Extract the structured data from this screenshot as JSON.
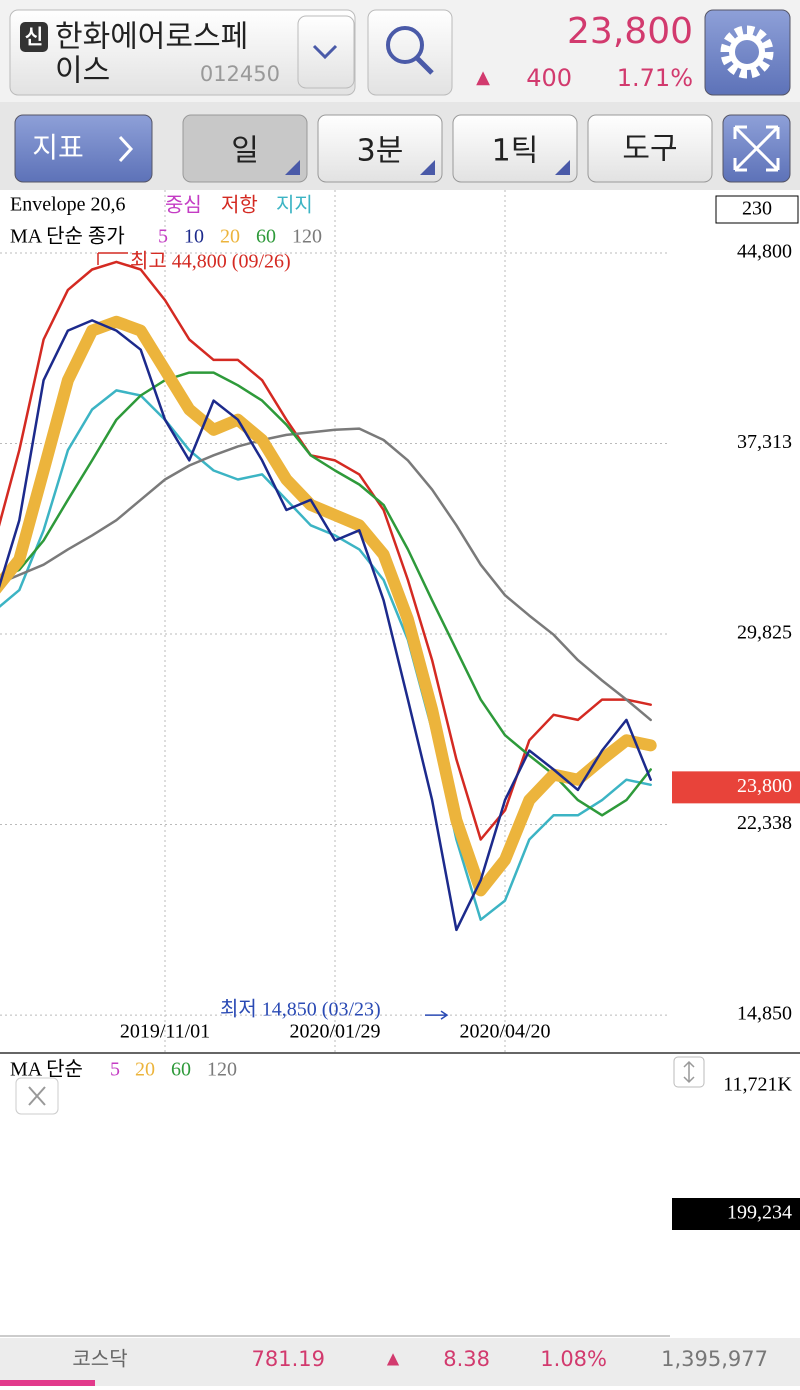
{
  "header": {
    "badge": "신",
    "name_line1": "한화에어로스페",
    "name_line2": "이스",
    "code": "012450",
    "price": "23,800",
    "change_arrow": "▲",
    "change": "400",
    "change_pct": "1.71%"
  },
  "toolbar": {
    "indicator": "지표",
    "period": "일",
    "minute": "3분",
    "tick": "1틱",
    "tools": "도구"
  },
  "chart_data": {
    "type": "line",
    "envelope_title": "Envelope 20,6",
    "envelope_center": {
      "name": "중심",
      "color": "#c43cc4"
    },
    "ma_title": "MA 단순 종가",
    "ma5": {
      "name": "5",
      "color": "#c43cc4"
    },
    "period_box": "230",
    "categories": [
      null,
      null,
      null,
      null,
      null,
      null,
      null,
      "2019/11/01",
      null,
      null,
      null,
      null,
      null,
      null,
      "2020/01/29",
      null,
      null,
      null,
      null,
      null,
      null,
      "2020/04/20",
      null,
      null,
      null,
      null,
      null,
      null
    ],
    "series": [
      {
        "name": "저항",
        "color": "#d42a22",
        "values": [
          33500,
          37050,
          41400,
          43350,
          44150,
          44450,
          44150,
          42950,
          41400,
          40600,
          40600,
          39800,
          38250,
          36850,
          36650,
          36100,
          34700,
          31950,
          28800,
          24900,
          21750,
          22900,
          25650,
          26650,
          26450,
          27250,
          27250,
          27050
        ]
      },
      {
        "name": "지지",
        "color": "#3cb4c4",
        "values": [
          30750,
          31550,
          33900,
          37050,
          38650,
          39400,
          39200,
          38250,
          37050,
          36250,
          35900,
          36100,
          35100,
          34100,
          33700,
          33150,
          31950,
          29600,
          26050,
          21750,
          18600,
          19350,
          21750,
          22700,
          22700,
          23300,
          24100,
          23900
        ]
      },
      {
        "name": "120",
        "color": "#7a7a7a",
        "values": [
          31750,
          32150,
          32550,
          33150,
          33700,
          34300,
          35100,
          35900,
          36450,
          36850,
          37200,
          37450,
          37650,
          37750,
          37850,
          37900,
          37450,
          36650,
          35500,
          34100,
          32550,
          31350,
          30550,
          29800,
          28800,
          28000,
          27250,
          26450
        ]
      },
      {
        "name": "60",
        "color": "#2e9a3a",
        "values": [
          31950,
          32350,
          33500,
          35100,
          36650,
          38250,
          39200,
          39800,
          40100,
          40100,
          39600,
          39000,
          38050,
          36850,
          36250,
          35700,
          34900,
          33150,
          31150,
          29200,
          27250,
          25850,
          25050,
          24300,
          23300,
          22700,
          23300,
          24500
        ]
      },
      {
        "name": "20",
        "color": "#ecb43c",
        "values": [
          31550,
          32750,
          36250,
          39800,
          41750,
          42100,
          41750,
          40200,
          38650,
          37850,
          38250,
          37450,
          35900,
          34900,
          34500,
          34100,
          32950,
          30400,
          26850,
          22500,
          19750,
          20950,
          23300,
          24300,
          24100,
          24900,
          25650,
          25450
        ]
      },
      {
        "name": "10",
        "color": "#1c2a8c",
        "values": [
          31150,
          34300,
          39800,
          41750,
          42150,
          41750,
          41000,
          38250,
          36650,
          39000,
          38250,
          36650,
          34700,
          35100,
          33500,
          33900,
          31150,
          27250,
          23300,
          18200,
          20150,
          23300,
          25250,
          24500,
          23700,
          25250,
          26450,
          24100
        ]
      }
    ],
    "ylim": [
      13400,
      47275
    ],
    "yticks": [
      {
        "value": 44800,
        "label": "44,800"
      },
      {
        "value": 37313,
        "label": "37,313"
      },
      {
        "value": 29825,
        "label": "29,825"
      },
      {
        "value": 22338,
        "label": "22,338"
      },
      {
        "value": 14850,
        "label": "14,850"
      }
    ],
    "current_price": {
      "value": 23800,
      "label": "23,800"
    },
    "high": {
      "value": 44800,
      "label": "최고 44,800 (09/26)"
    },
    "low": {
      "value": 14850,
      "label": "최저 14,850 (03/23)"
    },
    "grid": true
  },
  "volume": {
    "title": "MA 단순",
    "ma": [
      {
        "name": "5",
        "color": "#c43cc4"
      },
      {
        "name": "20",
        "color": "#ecb43c"
      },
      {
        "name": "60",
        "color": "#2e9a3a"
      },
      {
        "name": "120",
        "color": "#7a7a7a"
      }
    ],
    "top_label": "11,721K",
    "marker_label": "199,234"
  },
  "footer": {
    "index": "코스닥",
    "value": "781.19",
    "arrow": "▲",
    "change": "8.38",
    "change_pct": "1.08%",
    "volume": "1,395,977"
  }
}
